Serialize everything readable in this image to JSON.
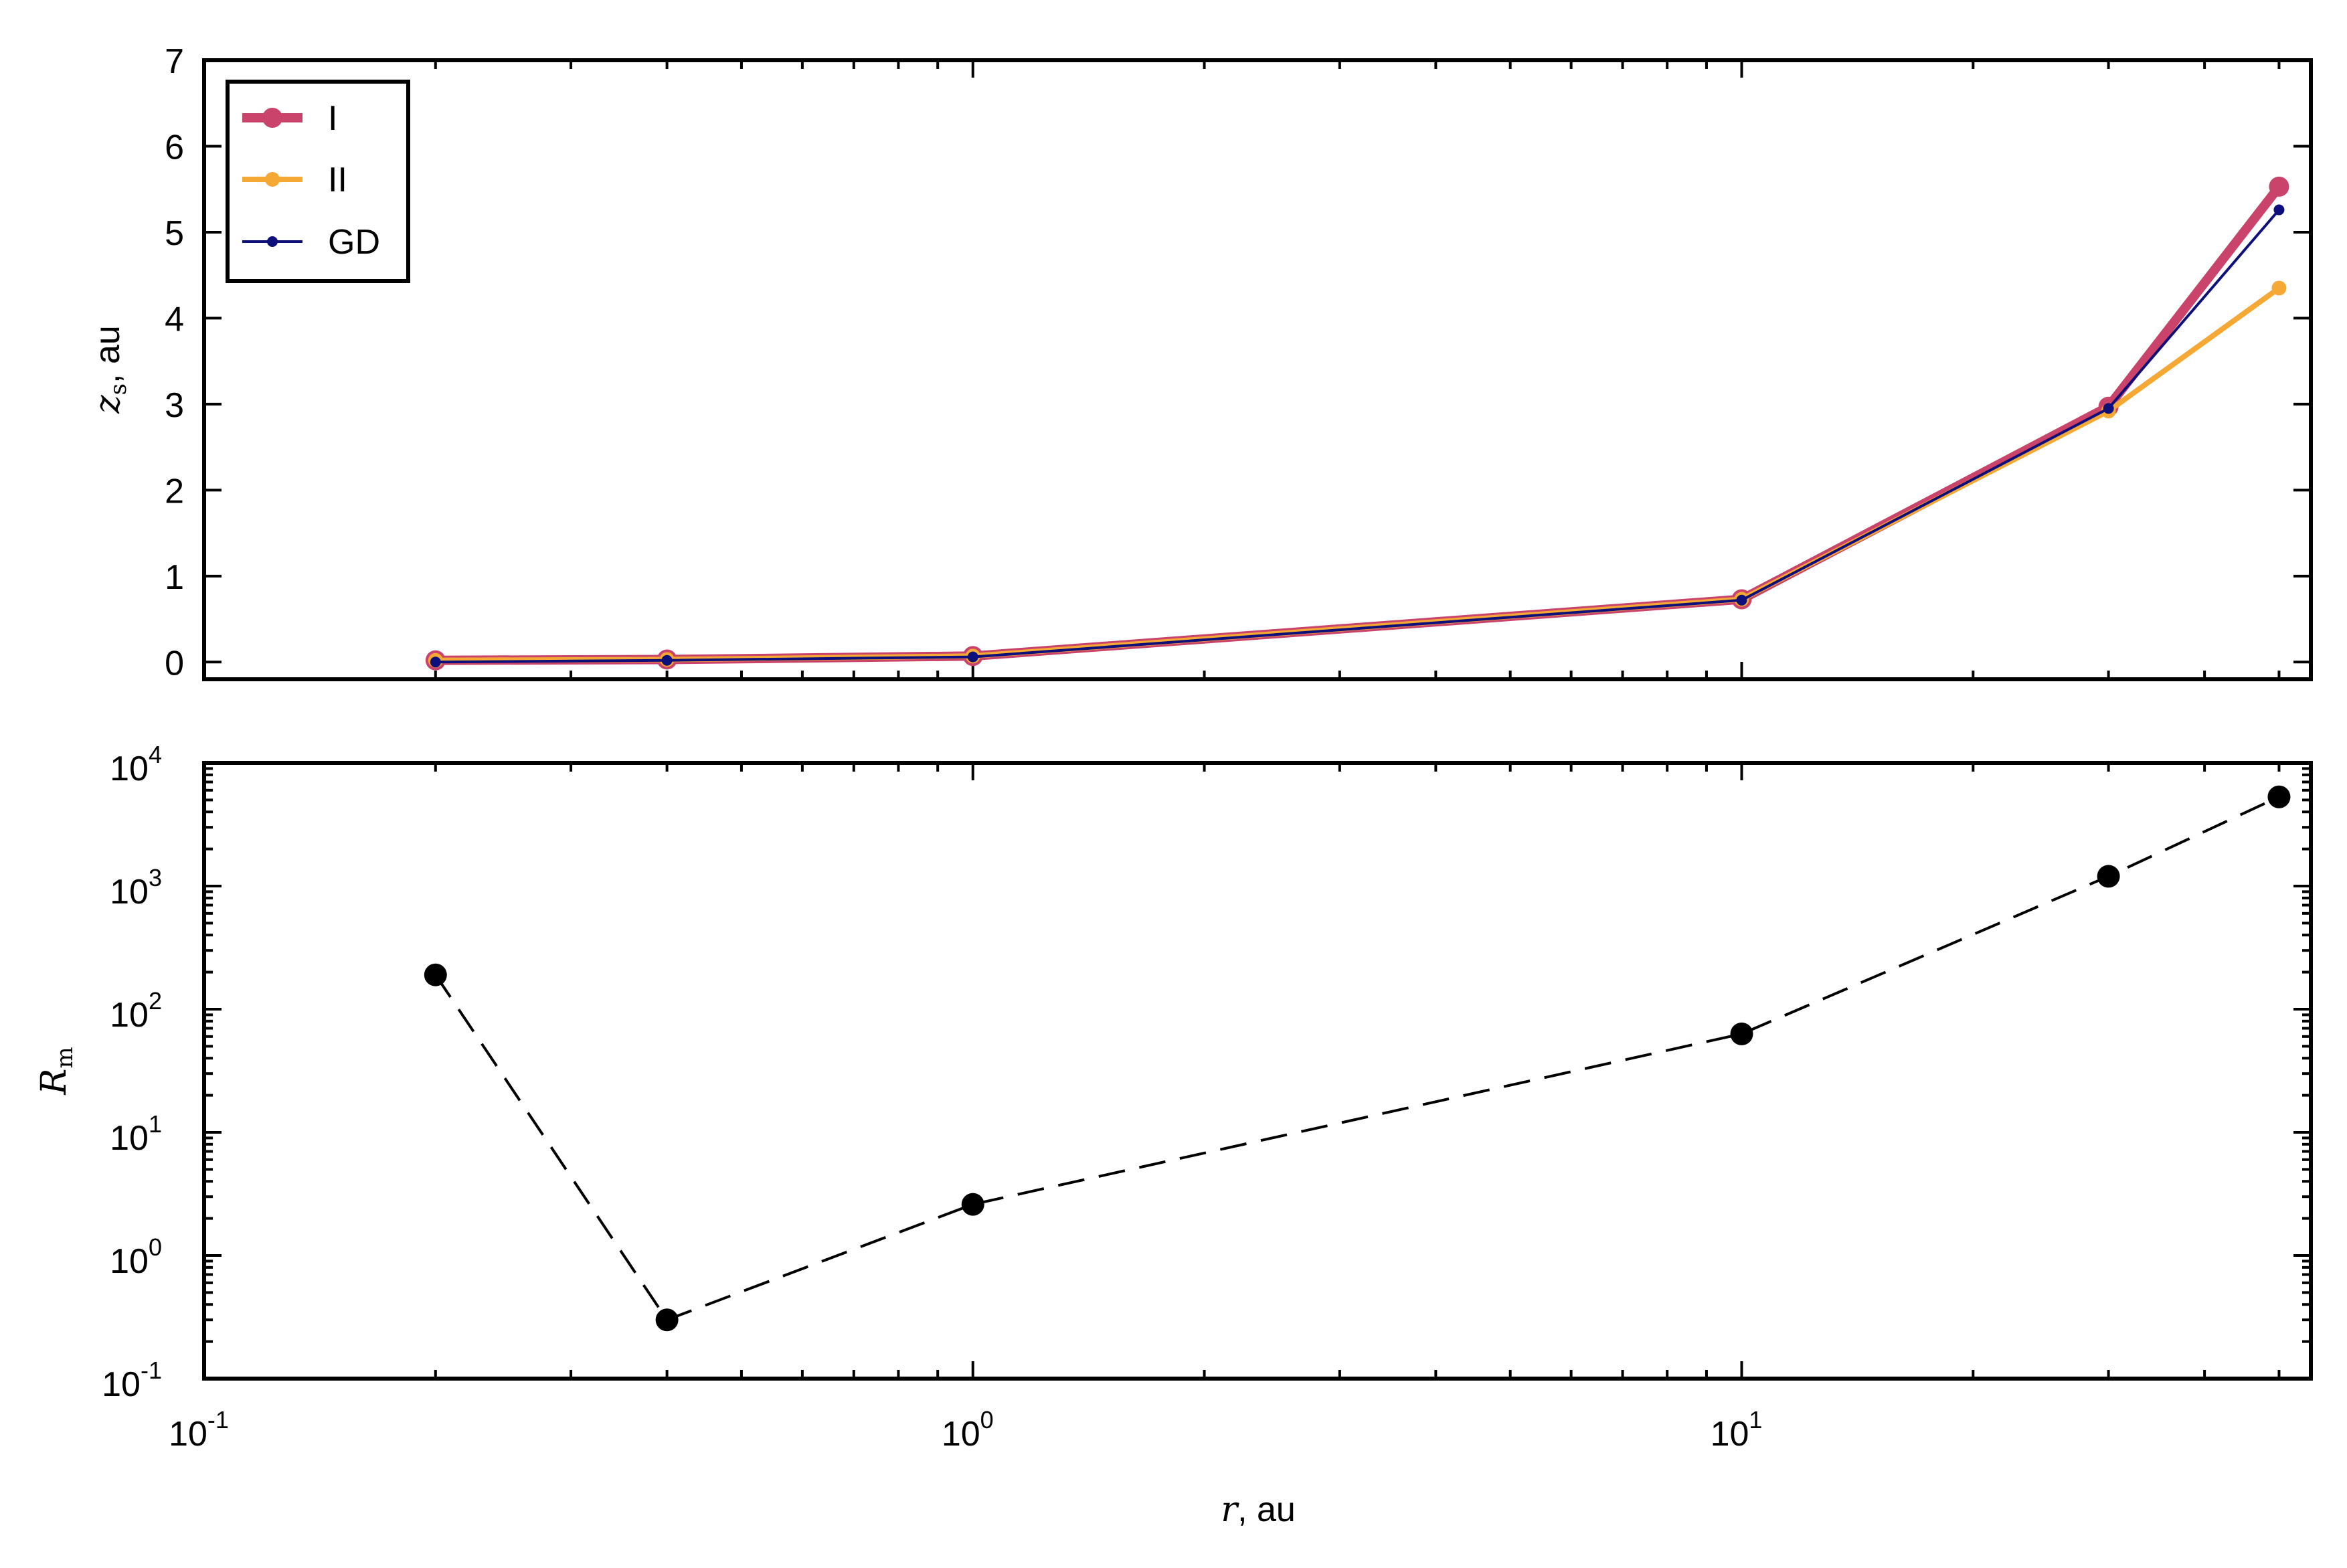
{
  "chart_data": [
    {
      "type": "line",
      "xscale": "log",
      "xlim": [
        0.1,
        55
      ],
      "ylim": [
        -0.2,
        7
      ],
      "yticks": [
        "0",
        "1",
        "2",
        "3",
        "4",
        "5",
        "6",
        "7"
      ],
      "ylabel_var": "z",
      "ylabel_sub": "s",
      "ylabel_unit": ", au",
      "legend_position": "top-left",
      "series": [
        {
          "name": "I",
          "color": "#c9436b",
          "x": [
            0.2,
            0.4,
            1,
            10,
            30,
            50
          ],
          "y": [
            0.02,
            0.03,
            0.07,
            0.73,
            2.97,
            5.53
          ]
        },
        {
          "name": "II",
          "color": "#f5a833",
          "x": [
            0.2,
            0.4,
            1,
            10,
            30,
            50
          ],
          "y": [
            0.02,
            0.03,
            0.07,
            0.73,
            2.92,
            4.35
          ]
        },
        {
          "name": "GD",
          "color": "#0d0f7a",
          "x": [
            0.2,
            0.4,
            1,
            10,
            30,
            50
          ],
          "y": [
            0.0,
            0.02,
            0.06,
            0.72,
            2.95,
            5.26
          ]
        }
      ]
    },
    {
      "type": "scatter",
      "xscale": "log",
      "yscale": "log",
      "xlim": [
        0.1,
        55
      ],
      "ylim": [
        0.1,
        10000
      ],
      "ylabel_var": "R",
      "ylabel_sub": "m",
      "xlabel_var": "r",
      "xlabel_unit": ", au",
      "line_style": "dashed",
      "color": "#000000",
      "x": [
        0.2,
        0.4,
        1,
        10,
        30,
        50
      ],
      "y": [
        190,
        0.3,
        2.6,
        63,
        1200,
        5300
      ]
    }
  ],
  "xticks": [
    {
      "base": "10",
      "exp": "-1",
      "value": 0.1
    },
    {
      "base": "10",
      "exp": "0",
      "value": 1
    },
    {
      "base": "10",
      "exp": "1",
      "value": 10
    }
  ],
  "yticks_log": [
    {
      "base": "10",
      "exp": "-1",
      "value": 0.1
    },
    {
      "base": "10",
      "exp": "0",
      "value": 1
    },
    {
      "base": "10",
      "exp": "1",
      "value": 10
    },
    {
      "base": "10",
      "exp": "2",
      "value": 100
    },
    {
      "base": "10",
      "exp": "3",
      "value": 1000
    },
    {
      "base": "10",
      "exp": "4",
      "value": 10000
    }
  ]
}
